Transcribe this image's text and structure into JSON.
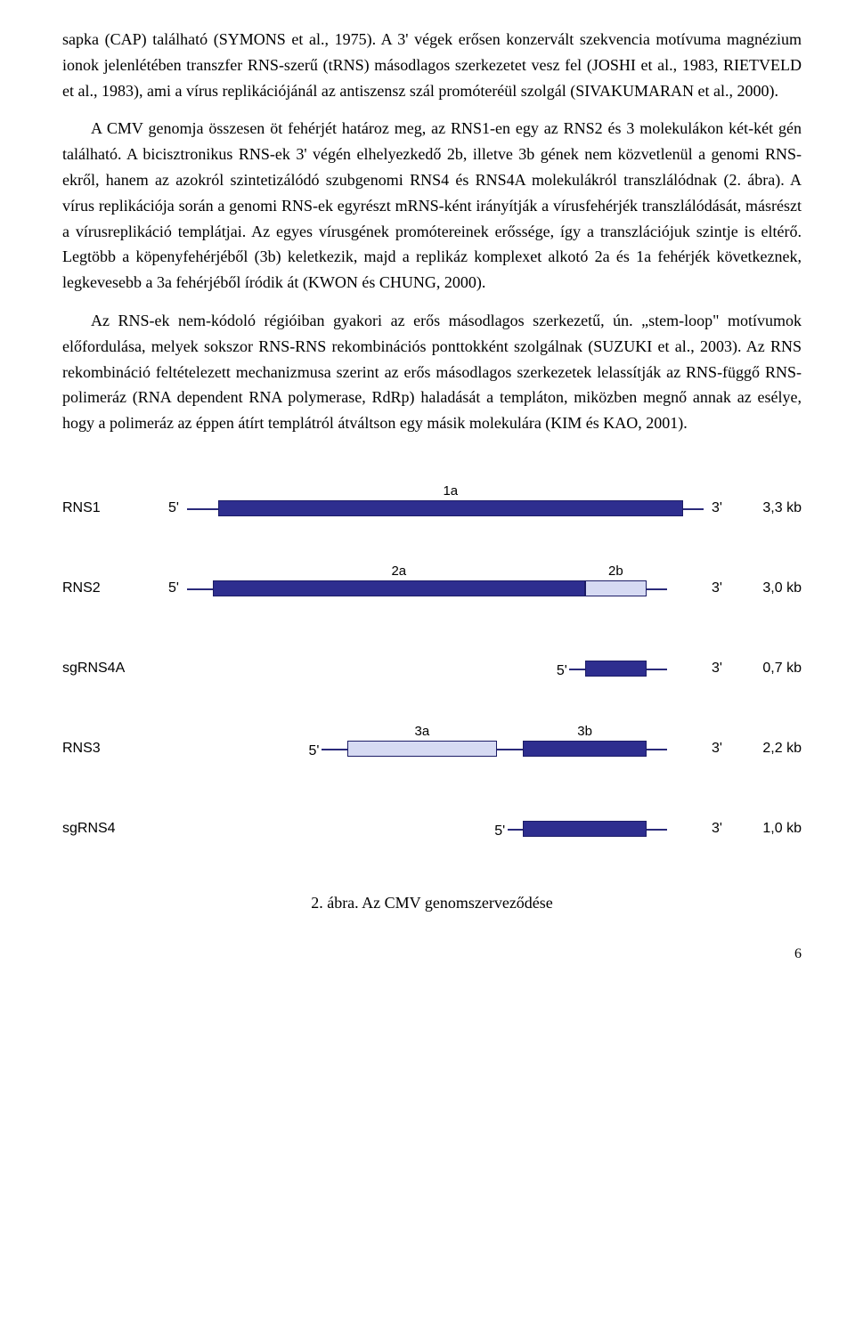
{
  "paragraphs": [
    "sapka (CAP) található (SYMONS et al., 1975). A 3' végek erősen konzervált szekvencia motívuma magnézium ionok jelenlétében transzfer RNS-szerű (tRNS) másodlagos szerkezetet vesz fel (JOSHI et al., 1983, RIETVELD et al., 1983), ami a vírus replikációjánál az antiszensz szál promóteréül szolgál (SIVAKUMARAN et al., 2000).",
    "A CMV genomja összesen öt fehérjét határoz meg, az RNS1-en egy az RNS2 és 3 molekulákon két-két gén található. A bicisztronikus RNS-ek 3' végén elhelyezkedő 2b, illetve 3b gének nem közvetlenül a genomi RNS-ekről, hanem az azokról szintetizálódó szubgenomi RNS4 és RNS4A molekulákról transzlálódnak (2. ábra). A vírus replikációja során a genomi RNS-ek egyrészt mRNS-ként irányítják a vírusfehérjék transzlálódását, másrészt a vírusreplikáció templátjai. Az egyes vírusgének promótereinek erőssége, így a transzlációjuk szintje is eltérő. Legtöbb a köpenyfehérjéből (3b) keletkezik, majd a replikáz komplexet alkotó 2a és 1a fehérjék következnek, legkevesebb a 3a fehérjéből íródik át (KWON és CHUNG, 2000).",
    "Az RNS-ek nem-kódoló régióiban gyakori az erős másodlagos szerkezetű, ún. „stem-loop\" motívumok előfordulása, melyek sokszor RNS-RNS rekombinációs ponttokként szolgálnak (SUZUKI et al., 2003). Az RNS rekombináció feltételezett mechanizmusa szerint az erős másodlagos szerkezetek lelassítják az RNS-függő RNS-polimeráz (RNA dependent RNA polymerase, RdRp) haladását a templáton, miközben megnő annak az esélye, hogy a polimeráz az éppen átírt templátról átváltson egy másik molekulára (KIM és KAO, 2001)."
  ],
  "diagram": {
    "five_prime": "5'",
    "three_prime": "3'",
    "colors": {
      "dark": "#2e2e8f",
      "light": "#d6daf3",
      "line": "#2a2a7a",
      "border": "#1c1c66",
      "bg": "#ffffff",
      "text": "#000000"
    },
    "rows": [
      {
        "name": "RNS1",
        "size": "3,3 kb",
        "track_start": 0,
        "track_end": 100,
        "fiveprime_at": 0,
        "segments": [
          {
            "label": "1a",
            "start": 6,
            "end": 96,
            "fill": "dark"
          }
        ]
      },
      {
        "name": "RNS2",
        "size": "3,0 kb",
        "track_start": 0,
        "track_end": 93,
        "fiveprime_at": 0,
        "segments": [
          {
            "label": "2a",
            "start": 5,
            "end": 77,
            "fill": "dark"
          },
          {
            "label": "2b",
            "start": 77,
            "end": 89,
            "fill": "light"
          }
        ]
      },
      {
        "name": "sgRNS4A",
        "size": "0,7 kb",
        "track_start": 74,
        "track_end": 93,
        "fiveprime_at": 74,
        "segments": [
          {
            "label": "",
            "start": 77,
            "end": 89,
            "fill": "dark"
          }
        ]
      },
      {
        "name": "RNS3",
        "size": "2,2 kb",
        "track_start": 26,
        "track_end": 93,
        "fiveprime_at": 26,
        "segments": [
          {
            "label": "3a",
            "start": 31,
            "end": 60,
            "fill": "light"
          },
          {
            "label": "3b",
            "start": 65,
            "end": 89,
            "fill": "dark"
          }
        ]
      },
      {
        "name": "sgRNS4",
        "size": "1,0 kb",
        "track_start": 62,
        "track_end": 93,
        "fiveprime_at": 62,
        "segments": [
          {
            "label": "",
            "start": 65,
            "end": 89,
            "fill": "dark"
          }
        ]
      }
    ]
  },
  "caption": "2.  ábra. Az CMV genomszerveződése",
  "page_number": "6"
}
